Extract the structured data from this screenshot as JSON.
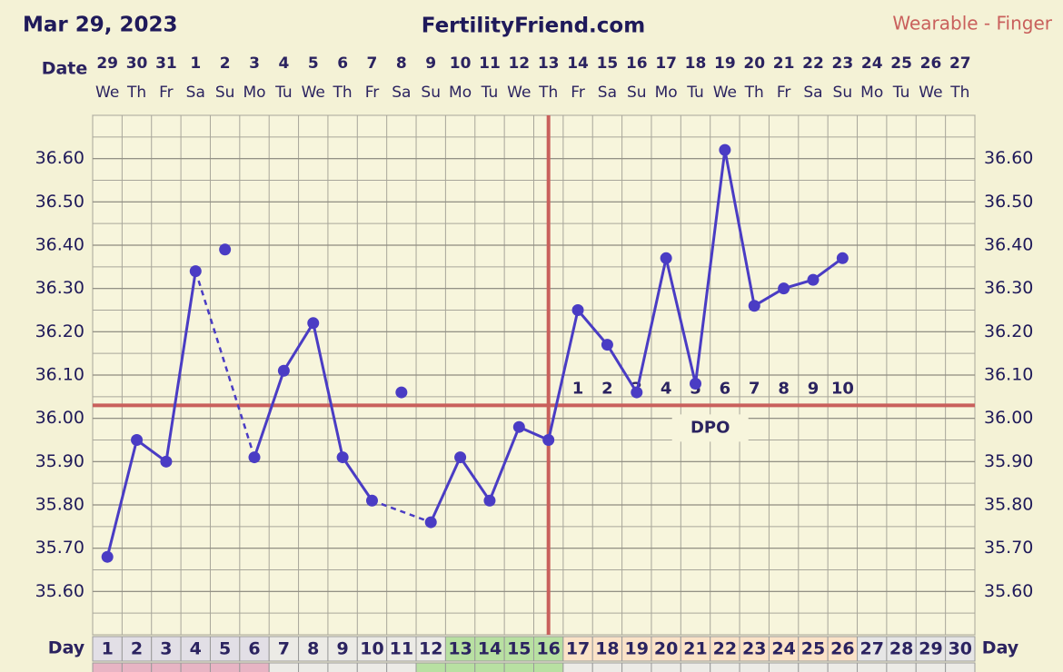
{
  "chart_data": {
    "type": "line",
    "title": "FertilityFriend.com",
    "date_text": "Mar 29, 2023",
    "subtitle": "Wearable - Finger",
    "date_label": "Date",
    "day_label": "Day",
    "dates": [
      "29",
      "30",
      "31",
      "1",
      "2",
      "3",
      "4",
      "5",
      "6",
      "7",
      "8",
      "9",
      "10",
      "11",
      "12",
      "13",
      "14",
      "15",
      "16",
      "17",
      "18",
      "19",
      "20",
      "21",
      "22",
      "23",
      "24",
      "25",
      "26",
      "27"
    ],
    "weekdays": [
      "We",
      "Th",
      "Fr",
      "Sa",
      "Su",
      "Mo",
      "Tu",
      "We",
      "Th",
      "Fr",
      "Sa",
      "Su",
      "Mo",
      "Tu",
      "We",
      "Th",
      "Fr",
      "Sa",
      "Su",
      "Mo",
      "Tu",
      "We",
      "Th",
      "Fr",
      "Sa",
      "Su",
      "Mo",
      "Tu",
      "We",
      "Th"
    ],
    "cycle_days": [
      1,
      2,
      3,
      4,
      5,
      6,
      7,
      8,
      9,
      10,
      11,
      12,
      13,
      14,
      15,
      16,
      17,
      18,
      19,
      20,
      21,
      22,
      23,
      24,
      25,
      26,
      27,
      28,
      29,
      30
    ],
    "temperatures": [
      35.68,
      35.95,
      35.9,
      36.34,
      null,
      35.91,
      36.11,
      36.22,
      35.91,
      35.81,
      null,
      35.76,
      35.91,
      35.81,
      35.98,
      35.95,
      36.25,
      36.17,
      36.06,
      36.37,
      36.08,
      36.62,
      36.26,
      36.3,
      36.32,
      36.37,
      null,
      null,
      null,
      null
    ],
    "discarded": [
      null,
      null,
      null,
      null,
      36.39,
      null,
      null,
      null,
      null,
      null,
      36.06,
      null,
      null,
      null,
      null,
      null,
      null,
      null,
      null,
      null,
      null,
      null,
      null,
      null,
      null,
      null,
      null,
      null,
      null,
      null
    ],
    "color": "#4a3cc4",
    "coverline": 36.03,
    "coverline_color": "#c9605c",
    "ovulation_day": 16,
    "dpo_label": "DPO",
    "dpo": [
      null,
      null,
      null,
      null,
      null,
      null,
      null,
      null,
      null,
      null,
      null,
      null,
      null,
      null,
      null,
      null,
      1,
      2,
      3,
      4,
      5,
      6,
      7,
      8,
      9,
      10,
      null,
      null,
      null,
      null
    ],
    "day_colors": [
      "#e2dfe6",
      "#e2dfe6",
      "#e2dfe6",
      "#e2dfe6",
      "#e2dfe6",
      "#e2dfe6",
      "#ecebe6",
      "#ecebe6",
      "#ecebe6",
      "#ecebe6",
      "#ecebe6",
      "#ecebe6",
      "#b8e0a2",
      "#b8e0a2",
      "#b8e0a2",
      "#b8e0a2",
      "#fbe3c8",
      "#fbe3c8",
      "#fbe3c8",
      "#fbe3c8",
      "#fbe3c8",
      "#fbe3c8",
      "#fbe3c8",
      "#fbe3c8",
      "#fbe3c8",
      "#fbe3c8",
      "#e6e6e6",
      "#e6e6e6",
      "#e6e6e6",
      "#e6e6e6"
    ],
    "second_row_colors": [
      "#e8b4c4",
      "#e8b4c4",
      "#e8b4c4",
      "#e8b4c4",
      "#e8b4c4",
      "#e8b4c4",
      "#ecebe6",
      "#ecebe6",
      "#ecebe6",
      "#ecebe6",
      "#ecebe6",
      "#b8e0a2",
      "#b8e0a2",
      "#b8e0a2",
      "#b8e0a2",
      "#b8e0a2",
      "#ecebe6",
      "#ecebe6",
      "#ecebe6",
      "#ecebe6",
      "#ecebe6",
      "#ecebe6",
      "#ecebe6",
      "#ecebe6",
      "#ecebe6",
      "#ecebe6",
      "#ecebe6",
      "#ecebe6",
      "#ecebe6",
      "#ecebe6"
    ],
    "ylim": [
      35.5,
      36.7
    ],
    "yticks": [
      {
        "value": 35.6,
        "label": "35.60"
      },
      {
        "value": 35.7,
        "label": "35.70"
      },
      {
        "value": 35.8,
        "label": "35.80"
      },
      {
        "value": 35.9,
        "label": "35.90"
      },
      {
        "value": 36.0,
        "label": "36.00"
      },
      {
        "value": 36.1,
        "label": "36.10"
      },
      {
        "value": 36.2,
        "label": "36.20"
      },
      {
        "value": 36.3,
        "label": "36.30"
      },
      {
        "value": 36.4,
        "label": "36.40"
      },
      {
        "value": 36.5,
        "label": "36.50"
      },
      {
        "value": 36.6,
        "label": "36.60"
      }
    ],
    "grid": true
  }
}
